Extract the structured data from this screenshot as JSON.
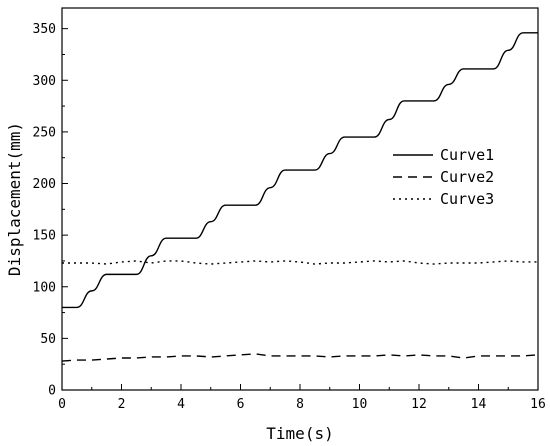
{
  "chart_data": {
    "type": "line",
    "xlabel": "Time(s)",
    "ylabel": "Displacement(mm)",
    "xlim": [
      0,
      16
    ],
    "ylim": [
      0,
      370
    ],
    "x_ticks": [
      0,
      2,
      4,
      6,
      8,
      10,
      12,
      14,
      16
    ],
    "y_ticks": [
      0,
      50,
      100,
      150,
      200,
      250,
      300,
      350
    ],
    "grid": false,
    "legend_position": "upper-right",
    "series": [
      {
        "name": "Curve1",
        "style": "solid",
        "x": [
          0,
          0.5,
          1.0,
          1.5,
          2.5,
          3.0,
          3.5,
          4.5,
          5.0,
          5.5,
          6.5,
          7.0,
          7.5,
          8.5,
          9.0,
          9.5,
          10.5,
          11.0,
          11.5,
          12.5,
          13.0,
          13.5,
          14.5,
          15.0,
          15.5,
          16.0
        ],
        "y": [
          80,
          80,
          96,
          112,
          112,
          130,
          147,
          147,
          163,
          179,
          179,
          196,
          213,
          213,
          229,
          245,
          245,
          262,
          280,
          280,
          296,
          311,
          311,
          329,
          346,
          346
        ]
      },
      {
        "name": "Curve2",
        "style": "dashed",
        "x": [
          0,
          0.5,
          1,
          1.5,
          2,
          2.5,
          3,
          3.5,
          4,
          4.5,
          5,
          5.5,
          6,
          6.5,
          7,
          7.5,
          8,
          8.5,
          9,
          9.5,
          10,
          10.5,
          11,
          11.5,
          12,
          12.5,
          13,
          13.5,
          14,
          14.5,
          15,
          15.5,
          16
        ],
        "y": [
          28,
          29,
          29,
          30,
          31,
          31,
          32,
          32,
          33,
          33,
          32,
          33,
          34,
          35,
          33,
          33,
          33,
          33,
          32,
          33,
          33,
          33,
          34,
          33,
          34,
          33,
          33,
          31,
          33,
          33,
          33,
          33,
          34
        ]
      },
      {
        "name": "Curve3",
        "style": "dotted",
        "x": [
          0,
          0.5,
          1,
          1.5,
          2,
          2.5,
          3,
          3.5,
          4,
          4.5,
          5,
          5.5,
          6,
          6.5,
          7,
          7.5,
          8,
          8.5,
          9,
          9.5,
          10,
          10.5,
          11,
          11.5,
          12,
          12.5,
          13,
          13.5,
          14,
          14.5,
          15,
          15.5,
          16
        ],
        "y": [
          123,
          123,
          123,
          122,
          124,
          125,
          123,
          125,
          125,
          123,
          122,
          123,
          124,
          125,
          124,
          125,
          124,
          122,
          123,
          123,
          124,
          125,
          124,
          125,
          123,
          122,
          123,
          123,
          123,
          124,
          125,
          124,
          124
        ]
      }
    ]
  }
}
